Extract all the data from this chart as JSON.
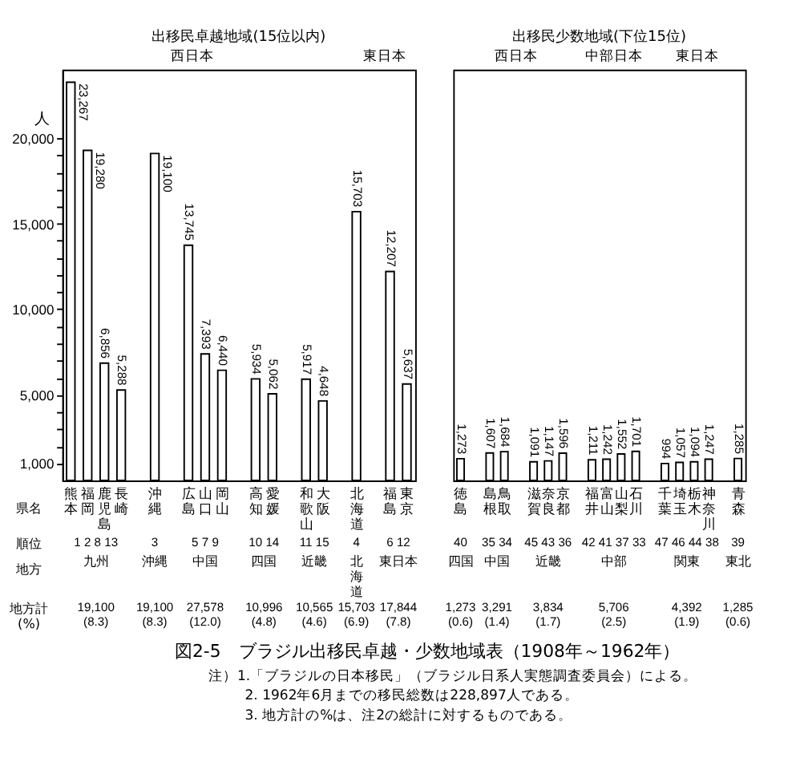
{
  "chart_data": [
    {
      "type": "bar",
      "title": "出移民卓越地域(15位以内)",
      "ylabel": "人",
      "categories": [
        "熊本",
        "福岡",
        "鹿児島",
        "長崎",
        "沖縄",
        "広島",
        "山口",
        "岡山",
        "高知",
        "愛媛",
        "和歌山",
        "大阪",
        "北海道",
        "福島",
        "東京"
      ],
      "values": [
        23267,
        19280,
        6856,
        5288,
        19100,
        13745,
        7393,
        6440,
        5934,
        5062,
        5917,
        4648,
        15703,
        12207,
        5637
      ],
      "value_labels": [
        "23,267",
        "19,280",
        "6,856",
        "5,288",
        "19,100",
        "13,745",
        "7,393",
        "6,440",
        "5,934",
        "5,062",
        "5,917",
        "4,648",
        "15,703",
        "12,207",
        "5,637"
      ],
      "color": "#ffffff",
      "ylim": [
        0,
        24000
      ],
      "yticks": [
        {
          "value": 1000,
          "label": "1,000"
        },
        {
          "value": 2000,
          "label": null
        },
        {
          "value": 3000,
          "label": null
        },
        {
          "value": 4000,
          "label": null
        },
        {
          "value": 5000,
          "label": "5,000"
        },
        {
          "value": 6000,
          "label": null
        },
        {
          "value": 7000,
          "label": null
        },
        {
          "value": 8000,
          "label": null
        },
        {
          "value": 9000,
          "label": null
        },
        {
          "value": 10000,
          "label": "10,000"
        },
        {
          "value": 11000,
          "label": null
        },
        {
          "value": 12000,
          "label": null
        },
        {
          "value": 13000,
          "label": null
        },
        {
          "value": 14000,
          "label": null
        },
        {
          "value": 15000,
          "label": "15,000"
        },
        {
          "value": 16000,
          "label": null
        },
        {
          "value": 17000,
          "label": null
        },
        {
          "value": 18000,
          "label": null
        },
        {
          "value": 19000,
          "label": null
        },
        {
          "value": 20000,
          "label": "20,000"
        }
      ],
      "annotations": [
        "県名",
        "順位",
        "地方",
        "地方計(%)",
        "西日本",
        "東日本",
        "1 2 8 13",
        "3",
        "5 7 9",
        "10 14",
        "11 15",
        "4",
        "6 12",
        "九州",
        "沖縄",
        "中国",
        "四国",
        "近畿",
        "北海道",
        "東日本",
        "19,100 (8.3)",
        "19,100 (8.3)",
        "27,578 (12.0)",
        "10,996 (4.8)",
        "10,565 (4.6)",
        "15,703 (6.9)",
        "17,844 (7.8)"
      ]
    },
    {
      "type": "bar",
      "title": "出移民少数地域(下位15位)",
      "categories": [
        "徳島",
        "島根",
        "鳥取",
        "滋賀",
        "奈良",
        "京都",
        "福井",
        "富山",
        "山梨",
        "石川",
        "千葉",
        "埼玉",
        "栃木",
        "神奈川",
        "青森"
      ],
      "values": [
        1273,
        1607,
        1684,
        1091,
        1147,
        1596,
        1211,
        1242,
        1552,
        1701,
        994,
        1057,
        1094,
        1247,
        1285
      ],
      "value_labels": [
        "1,273",
        "1,607",
        "1,684",
        "1,091",
        "1,147",
        "1,596",
        "1,211",
        "1,242",
        "1,552",
        "1,701",
        "994",
        "1,057",
        "1,094",
        "1,247",
        "1,285"
      ],
      "color": "#ffffff",
      "ylim": [
        0,
        24000
      ],
      "tick_labels": "x",
      "annotations": [
        "西日本",
        "中部日本",
        "東日本",
        "40",
        "35 34",
        "45 43 36",
        "42 41 37 33",
        "47 46 44 38",
        "39",
        "四国",
        "中国",
        "近畿",
        "中部",
        "関東",
        "東北",
        "1,273 (0.6)",
        "3,291 (1.4)",
        "3,834 (1.7)",
        "5,706 (2.5)",
        "4,392 (1.9)",
        "1,285 (0.6)"
      ]
    },
    {
      "type": "other",
      "title": "図2-5　ブラジル出移民卓越・少数地域表（1908年～1962年）",
      "annotations": [
        "注）1.「ブラジルの日本移民」（ブラジル日系人実態調査委員会）による。",
        "2. 1962年6月までの移民総数は228,897人である。",
        "3. 地方計の%は、注2の総計に対するものである。"
      ]
    }
  ]
}
